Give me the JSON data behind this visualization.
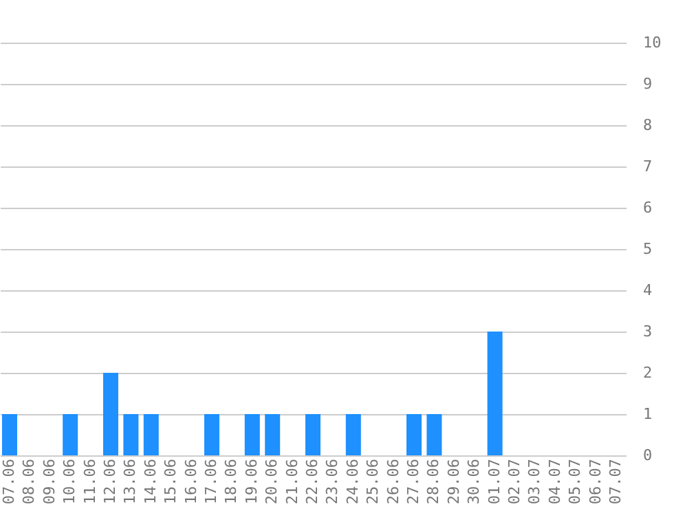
{
  "chart_data": {
    "type": "bar",
    "categories": [
      "07.06",
      "08.06",
      "09.06",
      "10.06",
      "11.06",
      "12.06",
      "13.06",
      "14.06",
      "15.06",
      "16.06",
      "17.06",
      "18.06",
      "19.06",
      "20.06",
      "21.06",
      "22.06",
      "23.06",
      "24.06",
      "25.06",
      "26.06",
      "27.06",
      "28.06",
      "29.06",
      "30.06",
      "01.07",
      "02.07",
      "03.07",
      "04.07",
      "05.07",
      "06.07",
      "07.07"
    ],
    "values": [
      1,
      0,
      0,
      1,
      0,
      2,
      1,
      1,
      0,
      0,
      1,
      0,
      1,
      1,
      0,
      1,
      0,
      1,
      0,
      0,
      1,
      1,
      0,
      0,
      3,
      0,
      0,
      0,
      0,
      0,
      0
    ],
    "color": "#1e90ff",
    "ylim": [
      0,
      10
    ],
    "yticks": [
      0,
      1,
      2,
      3,
      4,
      5,
      6,
      7,
      8,
      9,
      10
    ],
    "grid": "y"
  }
}
